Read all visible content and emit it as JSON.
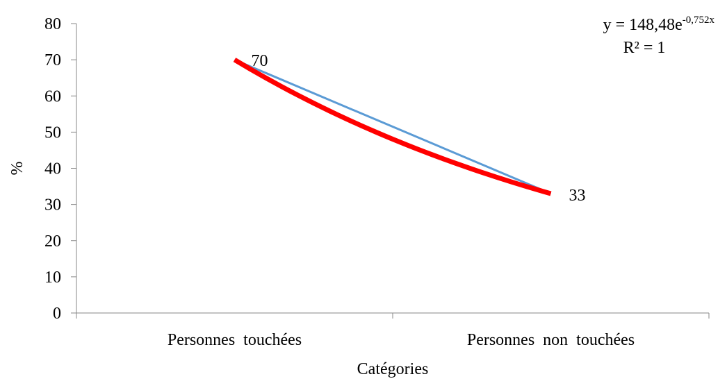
{
  "chart_data": {
    "type": "line",
    "categories": [
      "Personnes  touchées",
      "Personnes  non  touchées"
    ],
    "series": [
      {
        "values": [
          70,
          33
        ],
        "color": "#5b9bd5",
        "data_labels": [
          "70",
          "33"
        ]
      }
    ],
    "trendline": {
      "kind": "exponential",
      "color": "#ff0000",
      "equation_base": "y = 148,48e",
      "equation_exponent": "-0,752x",
      "r2": "R² = 1"
    },
    "xlabel": "Catégories",
    "ylabel": "%",
    "ylim": [
      0,
      80
    ],
    "y_ticks": [
      "0",
      "10",
      "20",
      "30",
      "40",
      "50",
      "60",
      "70",
      "80"
    ],
    "grid": false,
    "legend": "none"
  }
}
